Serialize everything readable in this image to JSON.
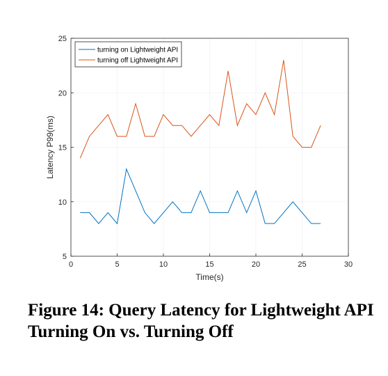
{
  "chart_data": {
    "type": "line",
    "title": "",
    "xlabel": "Time(s)",
    "ylabel": "Latency P99(ms)",
    "xlim": [
      0,
      30
    ],
    "ylim": [
      5,
      25
    ],
    "xticks": [
      0,
      5,
      10,
      15,
      20,
      25,
      30
    ],
    "yticks": [
      5,
      10,
      15,
      20,
      25
    ],
    "grid": true,
    "legend_position": "top-left",
    "series": [
      {
        "name": "turning on Lightweight API",
        "color": "#0072BD",
        "x": [
          1,
          2,
          3,
          4,
          5,
          6,
          7,
          8,
          9,
          10,
          11,
          12,
          13,
          14,
          15,
          16,
          17,
          18,
          19,
          20,
          21,
          22,
          23,
          24,
          25,
          26,
          27
        ],
        "y": [
          9,
          9,
          8,
          9,
          8,
          13,
          11,
          9,
          8,
          9,
          10,
          9,
          9,
          11,
          9,
          9,
          9,
          11,
          9,
          11,
          8,
          8,
          9,
          10,
          9,
          8,
          8
        ]
      },
      {
        "name": "turning off Lightweight API",
        "color": "#D95319",
        "x": [
          1,
          2,
          3,
          4,
          5,
          6,
          7,
          8,
          9,
          10,
          11,
          12,
          13,
          14,
          15,
          16,
          17,
          18,
          19,
          20,
          21,
          22,
          23,
          24,
          25,
          26,
          27
        ],
        "y": [
          14,
          16,
          17,
          18,
          16,
          16,
          19,
          16,
          16,
          18,
          17,
          17,
          16,
          17,
          18,
          17,
          22,
          17,
          19,
          18,
          20,
          18,
          23,
          16,
          15,
          15,
          17
        ]
      }
    ]
  },
  "caption": "Figure 14: Query Latency for Lightweight API Turning On vs. Turning Off"
}
